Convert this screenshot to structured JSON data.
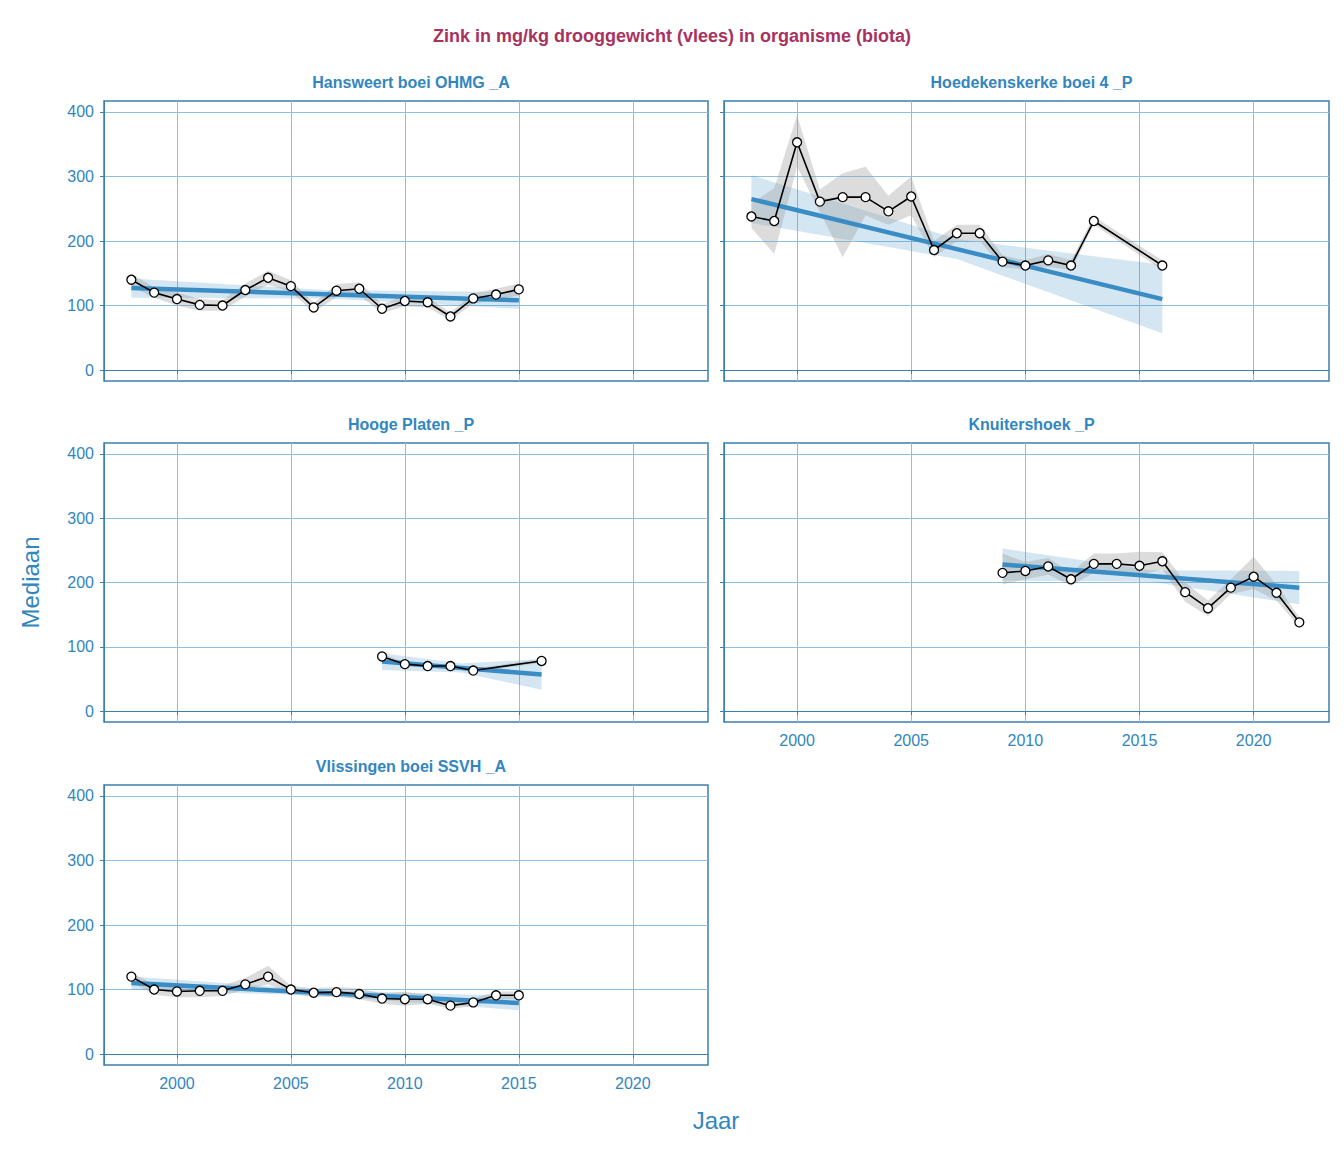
{
  "chart_data": {
    "type": "line",
    "title": "Zink in mg/kg drooggewicht (vlees) in organisme (biota)",
    "x_label": "Jaar",
    "y_label": "Mediaan",
    "xlim": [
      1996.8,
      2023.3
    ],
    "ylim": [
      -17,
      417
    ],
    "xticks": [
      2000,
      2005,
      2010,
      2015,
      2020
    ],
    "yticks": [
      0,
      100,
      200,
      300,
      400
    ],
    "grid": true,
    "panels": [
      {
        "title": "Hansweert boei OHMG _A",
        "tick_labels": "y",
        "series": [
          {
            "type": "line",
            "color": "#000000",
            "marker": "circle",
            "x": [
              1998,
              1999,
              2000,
              2001,
              2002,
              2003,
              2004,
              2005,
              2006,
              2007,
              2008,
              2009,
              2010,
              2011,
              2012,
              2013,
              2014,
              2015
            ],
            "values": [
              140,
              120,
              110,
              101,
              100,
              124,
              143,
              130,
              97,
              123,
              126,
              95,
              107,
              105,
              83,
              111,
              117,
              125
            ],
            "lower": [
              130,
              112,
              100,
              92,
              92,
              114,
              132,
              121,
              90,
              113,
              116,
              88,
              99,
              97,
              77,
              103,
              108,
              116
            ],
            "upper": [
              150,
              128,
              120,
              110,
              108,
              134,
              154,
              139,
              104,
              133,
              136,
              102,
              115,
              113,
              89,
              119,
              126,
              134
            ]
          },
          {
            "type": "trend",
            "color": "#3a8cc4",
            "line_style": "solid",
            "x": [
              1998,
              2006.5,
              2015
            ],
            "values": [
              127,
              117.5,
              108
            ],
            "lower": [
              112,
              111,
              95
            ],
            "upper": [
              142,
              124,
              121
            ]
          }
        ]
      },
      {
        "title": "Hoedekenskerke boei 4 _P",
        "tick_labels": false,
        "series": [
          {
            "type": "line",
            "color": "#000000",
            "marker": "circle",
            "x": [
              1998,
              1999,
              2000,
              2001,
              2002,
              2003,
              2004,
              2005,
              2006,
              2007,
              2008,
              2009,
              2010,
              2011,
              2012,
              2013,
              2016
            ],
            "values": [
              238,
              231,
              353,
              261,
              268,
              268,
              246,
              269,
              186,
              212,
              212,
              168,
              162,
              170,
              162,
              231,
              162
            ],
            "lower": [
              220,
              180,
              315,
              245,
              175,
              240,
              225,
              240,
              175,
              200,
              200,
              160,
              155,
              160,
              155,
              225,
              155
            ],
            "upper": [
              258,
              282,
              395,
              280,
              305,
              315,
              270,
              300,
              200,
              225,
              225,
              178,
              170,
              180,
              170,
              238,
              170
            ]
          },
          {
            "type": "trend",
            "color": "#3a8cc4",
            "line_style": "solid",
            "x": [
              1998,
              2007,
              2016
            ],
            "values": [
              265,
              187.5,
              110
            ],
            "lower": [
              228,
              172,
              57
            ],
            "upper": [
              302,
              203,
              163
            ]
          }
        ]
      },
      {
        "title": "Hooge Platen _P",
        "tick_labels": "y",
        "series": [
          {
            "type": "line",
            "color": "#000000",
            "marker": "circle",
            "x": [
              2009,
              2010,
              2011,
              2012,
              2013,
              2016
            ],
            "values": [
              85,
              73,
              70,
              70,
              63,
              78
            ],
            "lower": [
              81,
              70,
              67,
              67,
              60,
              75
            ],
            "upper": [
              89,
              76,
              73,
              73,
              66,
              81
            ]
          },
          {
            "type": "trend",
            "color": "#3a8cc4",
            "line_style": "solid",
            "x": [
              2009,
              2012.5,
              2016
            ],
            "values": [
              77,
              67,
              57
            ],
            "lower": [
              64,
              60,
              33
            ],
            "upper": [
              90,
              74,
              81
            ]
          }
        ]
      },
      {
        "title": "Knuitershoek _P",
        "tick_labels": "x",
        "series": [
          {
            "type": "line",
            "color": "#000000",
            "marker": "circle",
            "x": [
              2009,
              2010,
              2011,
              2012,
              2013,
              2014,
              2015,
              2016,
              2017,
              2018,
              2019,
              2020,
              2021,
              2022
            ],
            "values": [
              215,
              218,
              225,
              205,
              229,
              229,
              226,
              233,
              185,
              160,
              192,
              209,
              184,
              138
            ],
            "lower": [
              197,
              205,
              212,
              195,
              215,
              212,
              212,
              220,
              170,
              148,
              182,
              190,
              172,
              130
            ],
            "upper": [
              245,
              232,
              238,
              215,
              245,
              245,
              248,
              247,
              200,
              172,
              205,
              240,
              197,
              146
            ]
          },
          {
            "type": "trend",
            "color": "#3a8cc4",
            "line_style": "solid",
            "x": [
              2009,
              2015.5,
              2022
            ],
            "values": [
              228,
              210,
              192
            ],
            "lower": [
              203,
              201,
              166
            ],
            "upper": [
              253,
              219,
              218
            ]
          }
        ]
      },
      {
        "title": "Vlissingen boei SSVH _A",
        "tick_labels": true,
        "series": [
          {
            "type": "line",
            "color": "#000000",
            "marker": "circle",
            "x": [
              1998,
              1999,
              2000,
              2001,
              2002,
              2003,
              2004,
              2005,
              2006,
              2007,
              2008,
              2009,
              2010,
              2011,
              2012,
              2013,
              2014,
              2015
            ],
            "values": [
              120,
              100,
              97,
              98,
              98,
              108,
              120,
              100,
              95,
              96,
              93,
              86,
              85,
              85,
              75,
              80,
              91,
              91
            ],
            "lower": [
              112,
              92,
              88,
              88,
              90,
              100,
              108,
              93,
              88,
              89,
              85,
              78,
              75,
              78,
              70,
              74,
              85,
              85
            ],
            "upper": [
              126,
              108,
              106,
              108,
              106,
              118,
              137,
              106,
              102,
              104,
              102,
              94,
              96,
              92,
              80,
              86,
              97,
              97
            ]
          },
          {
            "type": "trend",
            "color": "#3a8cc4",
            "line_style": "solid",
            "x": [
              1998,
              2006.5,
              2015
            ],
            "values": [
              110,
              94.5,
              79
            ],
            "lower": [
              100,
              90,
              68
            ],
            "upper": [
              120,
              99,
              90
            ]
          }
        ]
      }
    ]
  }
}
